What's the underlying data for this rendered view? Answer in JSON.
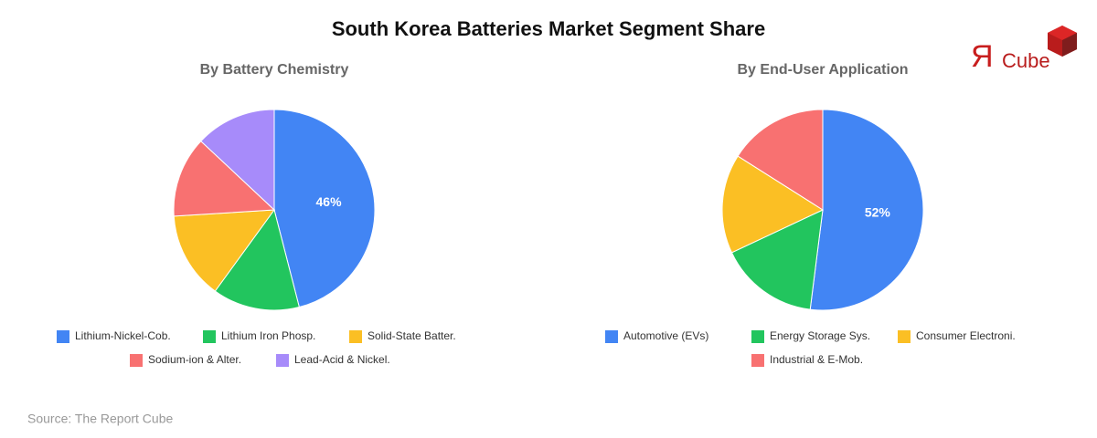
{
  "header": {
    "title": "South Korea Batteries Market Segment Share"
  },
  "logo": {
    "mark": "Я",
    "text": "Cube"
  },
  "chart_data": [
    {
      "type": "pie",
      "title": "By Battery Chemistry",
      "categories": [
        "Lithium-Nickel-Cob.",
        "Lithium Iron Phosp.",
        "Solid-State Batter.",
        "Sodium-ion & Alter.",
        "Lead-Acid & Nickel."
      ],
      "values": [
        46,
        14,
        14,
        13,
        13
      ],
      "value_labels": [
        "46%",
        null,
        null,
        null,
        null
      ],
      "colors": [
        "#4285f4",
        "#22c55e",
        "#fbbf24",
        "#f87171",
        "#a78bfa"
      ]
    },
    {
      "type": "pie",
      "title": "By End-User Application",
      "categories": [
        "Automotive (EVs)",
        "Energy Storage Sys.",
        "Consumer Electroni.",
        "Industrial & E-Mob."
      ],
      "values": [
        52,
        16,
        16,
        16
      ],
      "value_labels": [
        "52%",
        null,
        null,
        null
      ],
      "colors": [
        "#4285f4",
        "#22c55e",
        "#fbbf24",
        "#f87171"
      ]
    }
  ],
  "footer": {
    "source": "Source: The Report Cube"
  }
}
